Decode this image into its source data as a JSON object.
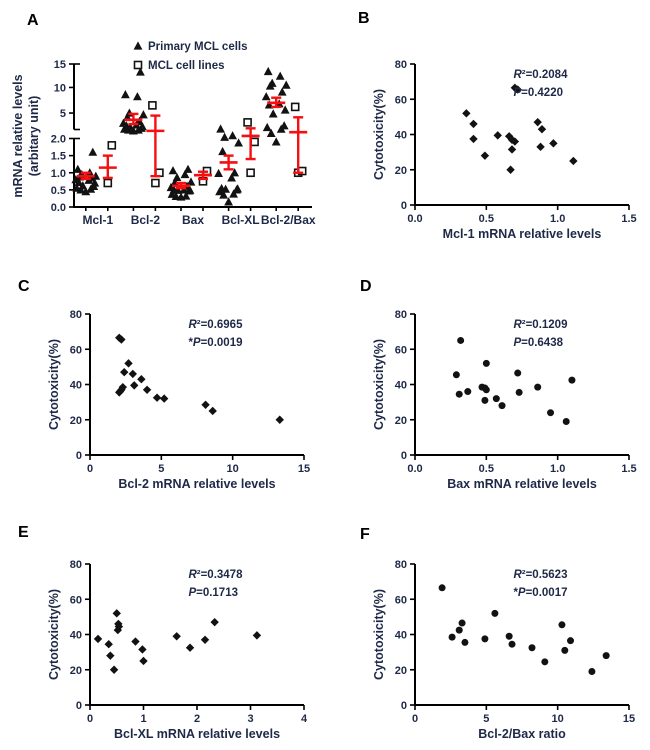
{
  "colors": {
    "text": "#1e2947",
    "marker": "#121212",
    "axis": "#000000",
    "error_bar": "#f50f10",
    "panel_letter": "#000000",
    "background": "#ffffff"
  },
  "chart_data": [
    {
      "type": "category-dot",
      "label": "A",
      "ylabel": [
        "mRNA relative levels",
        "(arbitary unit)"
      ],
      "legend": [
        {
          "marker": "triangle",
          "label": "Primary MCL cells"
        },
        {
          "marker": "square",
          "label": "MCL cell lines"
        }
      ],
      "y_axis": {
        "lower_ticks": [
          0,
          0.5,
          1.0,
          1.5,
          2.0
        ],
        "lower_tick_labels": [
          "0.0",
          "0.5",
          "1.0",
          "1.5",
          "2.0"
        ],
        "upper_ticks": [
          5,
          10,
          15
        ],
        "upper_tick_labels": [
          "5",
          "10",
          "15"
        ],
        "anchors": [
          [
            0,
            0
          ],
          [
            2,
            0.479
          ],
          [
            5,
            0.657
          ],
          [
            10,
            0.836
          ],
          [
            15,
            1
          ]
        ],
        "broken_axis": true
      },
      "categories": [
        {
          "name": "Mcl-1",
          "primary": [
            0.45,
            0.5,
            0.52,
            0.55,
            0.6,
            0.62,
            0.7,
            0.72,
            0.78,
            0.8,
            0.85,
            0.88,
            0.9,
            0.95,
            1.0,
            1.1,
            1.6
          ],
          "lines": [
            0.7,
            1.8
          ],
          "primary_bar": {
            "mean": 0.9,
            "lo": 0.82,
            "hi": 1.0
          },
          "lines_bar": {
            "mean": 1.15,
            "lo": 0.85,
            "hi": 1.5
          }
        },
        {
          "name": "Bcl-2",
          "primary": [
            2.9,
            3.0,
            3.0,
            3.1,
            3.2,
            3.3,
            3.4,
            3.5,
            3.6,
            3.8,
            4.0,
            4.5,
            4.8,
            5.0,
            8.2,
            8.6,
            13.3
          ],
          "lines": [
            0.7,
            1.0,
            6.5
          ],
          "primary_bar": {
            "mean": 4.2,
            "lo": 3.7,
            "hi": 4.9
          },
          "lines_bar": {
            "mean": 2.9,
            "lo": 0.9,
            "hi": 4.7
          }
        },
        {
          "name": "Bax",
          "primary": [
            0.29,
            0.31,
            0.32,
            0.37,
            0.47,
            0.49,
            0.49,
            0.5,
            0.5,
            0.57,
            0.61,
            0.72,
            0.73,
            0.86,
            0.95,
            1.06,
            1.1
          ],
          "lines": [
            0.75,
            1.05
          ],
          "primary_bar": {
            "mean": 0.62,
            "lo": 0.55,
            "hi": 0.7
          },
          "lines_bar": {
            "mean": 0.93,
            "lo": 0.82,
            "hi": 1.03
          }
        },
        {
          "name": "Bcl-XL",
          "primary": [
            0.15,
            0.35,
            0.38,
            0.45,
            0.5,
            0.52,
            0.53,
            0.54,
            0.85,
            0.98,
            1.0,
            1.62,
            1.87,
            2.15,
            2.33,
            3.12
          ],
          "lines": [
            1.0,
            1.9,
            3.9
          ],
          "primary_bar": {
            "mean": 1.3,
            "lo": 1.1,
            "hi": 1.5
          },
          "lines_bar": {
            "mean": 2.3,
            "lo": 1.4,
            "hi": 3.2
          }
        },
        {
          "name": "Bcl-2/Bax",
          "primary": [
            1.9,
            2.6,
            3.1,
            3.3,
            3.5,
            4.9,
            5.6,
            6.6,
            6.8,
            8.2,
            9.1,
            10.3,
            10.5,
            10.9,
            12.4,
            13.4
          ],
          "lines": [
            1.0,
            1.05,
            6.2
          ],
          "primary_bar": {
            "mean": 7.0,
            "lo": 6.2,
            "hi": 8.0
          },
          "lines_bar": {
            "mean": 2.75,
            "lo": 1.0,
            "hi": 4.5
          }
        }
      ]
    },
    {
      "type": "scatter",
      "label": "B",
      "xlabel": "Mcl-1 mRNA relative levels",
      "ylabel": "Cytotoxicity(%)",
      "marker": "diamond",
      "stats": [
        "R²=0.2084",
        "P=0.4220"
      ],
      "xlim": [
        0,
        1.5
      ],
      "xticks": [
        "0.0",
        "0.5",
        "1.0",
        "1.5"
      ],
      "ylim": [
        0,
        80
      ],
      "yticks": [
        "0",
        "20",
        "40",
        "60",
        "80"
      ],
      "points": [
        [
          0.36,
          52
        ],
        [
          0.41,
          46
        ],
        [
          0.41,
          37.5
        ],
        [
          0.49,
          28
        ],
        [
          0.58,
          39.5
        ],
        [
          0.66,
          39
        ],
        [
          0.67,
          20
        ],
        [
          0.68,
          37
        ],
        [
          0.68,
          31.5
        ],
        [
          0.7,
          66.5
        ],
        [
          0.7,
          36
        ],
        [
          0.72,
          65.5
        ],
        [
          0.86,
          47
        ],
        [
          0.88,
          33
        ],
        [
          0.89,
          43
        ],
        [
          0.97,
          35
        ],
        [
          1.11,
          25
        ]
      ]
    },
    {
      "type": "scatter",
      "label": "C",
      "xlabel": "Bcl-2 mRNA relative levels",
      "ylabel": "Cytotoxicity(%)",
      "marker": "diamond",
      "stats": [
        "R²=0.6965",
        "*P=0.0019"
      ],
      "xlim": [
        0,
        15
      ],
      "xticks": [
        "0",
        "5",
        "10",
        "15"
      ],
      "ylim": [
        0,
        80
      ],
      "yticks": [
        "0",
        "20",
        "40",
        "60",
        "80"
      ],
      "points": [
        [
          2.05,
          66.5
        ],
        [
          2.2,
          65.5
        ],
        [
          2.05,
          35.5
        ],
        [
          2.1,
          36
        ],
        [
          2.2,
          37
        ],
        [
          2.3,
          38.5
        ],
        [
          2.4,
          47
        ],
        [
          2.7,
          52
        ],
        [
          3.0,
          46
        ],
        [
          3.1,
          39.5
        ],
        [
          3.6,
          43
        ],
        [
          4.0,
          37
        ],
        [
          4.7,
          32.5
        ],
        [
          5.2,
          32
        ],
        [
          8.1,
          28.5
        ],
        [
          8.6,
          25
        ],
        [
          13.3,
          20
        ]
      ]
    },
    {
      "type": "scatter",
      "label": "D",
      "xlabel": "Bax mRNA relative levels",
      "ylabel": "Cytotoxicity(%)",
      "marker": "circle",
      "stats": [
        "R²=0.1209",
        "P=0.6438"
      ],
      "xlim": [
        0,
        1.5
      ],
      "xticks": [
        "0.0",
        "0.5",
        "1.0",
        "1.5"
      ],
      "ylim": [
        0,
        80
      ],
      "yticks": [
        "0",
        "20",
        "40",
        "60",
        "80"
      ],
      "points": [
        [
          0.29,
          45.5
        ],
        [
          0.31,
          34.5
        ],
        [
          0.32,
          65
        ],
        [
          0.37,
          36
        ],
        [
          0.47,
          38.5
        ],
        [
          0.49,
          38
        ],
        [
          0.49,
          31
        ],
        [
          0.5,
          52
        ],
        [
          0.5,
          37
        ],
        [
          0.57,
          32
        ],
        [
          0.61,
          28
        ],
        [
          0.72,
          46.5
        ],
        [
          0.73,
          35.5
        ],
        [
          0.86,
          38.5
        ],
        [
          0.95,
          24
        ],
        [
          1.06,
          19
        ],
        [
          1.1,
          42.5
        ]
      ]
    },
    {
      "type": "scatter",
      "label": "E",
      "xlabel": "Bcl-XL mRNA relative levels",
      "ylabel": "Cytotoxicity(%)",
      "marker": "diamond",
      "stats": [
        "R²=0.3478",
        "P=0.1713"
      ],
      "xlim": [
        0,
        4
      ],
      "xticks": [
        "0",
        "1",
        "2",
        "3",
        "4"
      ],
      "ylim": [
        0,
        80
      ],
      "yticks": [
        "0",
        "20",
        "40",
        "60",
        "80"
      ],
      "points": [
        [
          0.15,
          37.5
        ],
        [
          0.35,
          34.5
        ],
        [
          0.38,
          28
        ],
        [
          0.45,
          20
        ],
        [
          0.5,
          52
        ],
        [
          0.52,
          42.5
        ],
        [
          0.53,
          46
        ],
        [
          0.54,
          44.5
        ],
        [
          0.85,
          36
        ],
        [
          0.98,
          31.5
        ],
        [
          1.0,
          25
        ],
        [
          1.62,
          39
        ],
        [
          1.87,
          32.5
        ],
        [
          2.15,
          37
        ],
        [
          2.33,
          47
        ],
        [
          3.12,
          39.5
        ]
      ]
    },
    {
      "type": "scatter",
      "label": "F",
      "xlabel": "Bcl-2/Bax ratio",
      "ylabel": "Cytotoxicity(%)",
      "marker": "circle",
      "stats": [
        "R²=0.5623",
        "*P=0.0017"
      ],
      "xlim": [
        0,
        15
      ],
      "xticks": [
        "0",
        "5",
        "10",
        "15"
      ],
      "ylim": [
        0,
        80
      ],
      "yticks": [
        "0",
        "20",
        "40",
        "60",
        "80"
      ],
      "points": [
        [
          1.9,
          66.5
        ],
        [
          2.6,
          38.5
        ],
        [
          3.1,
          42.5
        ],
        [
          3.3,
          46.5
        ],
        [
          3.5,
          35.5
        ],
        [
          4.9,
          37.5
        ],
        [
          5.6,
          52
        ],
        [
          6.6,
          39
        ],
        [
          6.8,
          34.5
        ],
        [
          8.2,
          32.5
        ],
        [
          9.1,
          24.5
        ],
        [
          10.3,
          45.5
        ],
        [
          10.5,
          31
        ],
        [
          10.9,
          36.5
        ],
        [
          12.4,
          19
        ],
        [
          13.4,
          28
        ]
      ]
    }
  ]
}
